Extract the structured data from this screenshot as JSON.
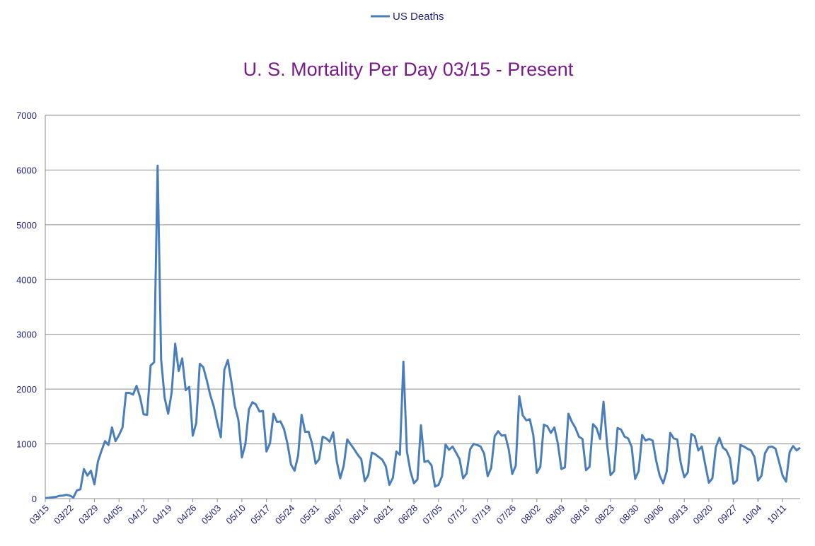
{
  "chart_data": {
    "type": "line",
    "title": "U. S. Mortality Per Day 03/15 - Present",
    "xlabel": "",
    "ylabel": "",
    "ylim": [
      0,
      7000
    ],
    "yticks": [
      0,
      1000,
      2000,
      3000,
      4000,
      5000,
      6000,
      7000
    ],
    "grid": true,
    "legend": "top-center",
    "series_color": "#4a7ebb",
    "xtick_labels": [
      "03/15",
      "03/22",
      "03/29",
      "04/05",
      "04/12",
      "04/19",
      "04/26",
      "05/03",
      "05/10",
      "05/17",
      "05/24",
      "05/31",
      "06/07",
      "06/14",
      "06/21",
      "06/28",
      "07/05",
      "07/12",
      "07/19",
      "07/26",
      "08/02",
      "08/09",
      "08/16",
      "08/23",
      "08/30",
      "09/06",
      "09/13",
      "09/20",
      "09/27",
      "10/04",
      "10/11"
    ],
    "series": [
      {
        "name": "US Deaths",
        "values": [
          10,
          15,
          25,
          30,
          50,
          55,
          70,
          55,
          20,
          150,
          170,
          540,
          420,
          510,
          260,
          680,
          870,
          1050,
          980,
          1300,
          1050,
          1160,
          1300,
          1930,
          1930,
          1900,
          2060,
          1850,
          1540,
          1530,
          2430,
          2490,
          6080,
          2540,
          1840,
          1550,
          1940,
          2830,
          2330,
          2560,
          1980,
          2040,
          1150,
          1380,
          2460,
          2400,
          2160,
          1890,
          1680,
          1380,
          1120,
          2350,
          2530,
          2140,
          1690,
          1440,
          750,
          1000,
          1630,
          1760,
          1720,
          1590,
          1600,
          860,
          1010,
          1550,
          1400,
          1410,
          1270,
          1000,
          620,
          510,
          780,
          1530,
          1220,
          1220,
          1000,
          640,
          720,
          1130,
          1100,
          1040,
          1210,
          690,
          370,
          600,
          1080,
          990,
          900,
          800,
          720,
          320,
          430,
          840,
          810,
          760,
          710,
          590,
          250,
          380,
          860,
          800,
          2500,
          860,
          500,
          280,
          350,
          1340,
          670,
          690,
          610,
          220,
          250,
          410,
          990,
          890,
          950,
          840,
          720,
          370,
          460,
          900,
          1000,
          980,
          950,
          820,
          410,
          560,
          1140,
          1230,
          1150,
          1160,
          900,
          450,
          600,
          1870,
          1520,
          1430,
          1450,
          1160,
          470,
          580,
          1350,
          1320,
          1200,
          1300,
          1000,
          540,
          570,
          1550,
          1400,
          1290,
          1130,
          1090,
          520,
          580,
          1360,
          1290,
          1090,
          1770,
          1000,
          430,
          500,
          1290,
          1260,
          1130,
          1100,
          950,
          360,
          500,
          1160,
          1060,
          1090,
          1060,
          690,
          420,
          280,
          500,
          1200,
          1100,
          1080,
          650,
          390,
          480,
          1180,
          1140,
          880,
          950,
          610,
          290,
          370,
          940,
          1110,
          930,
          880,
          740,
          270,
          330,
          980,
          950,
          910,
          880,
          760,
          330,
          420,
          830,
          940,
          950,
          910,
          670,
          420,
          310,
          850,
          960,
          880,
          930
        ]
      }
    ]
  }
}
